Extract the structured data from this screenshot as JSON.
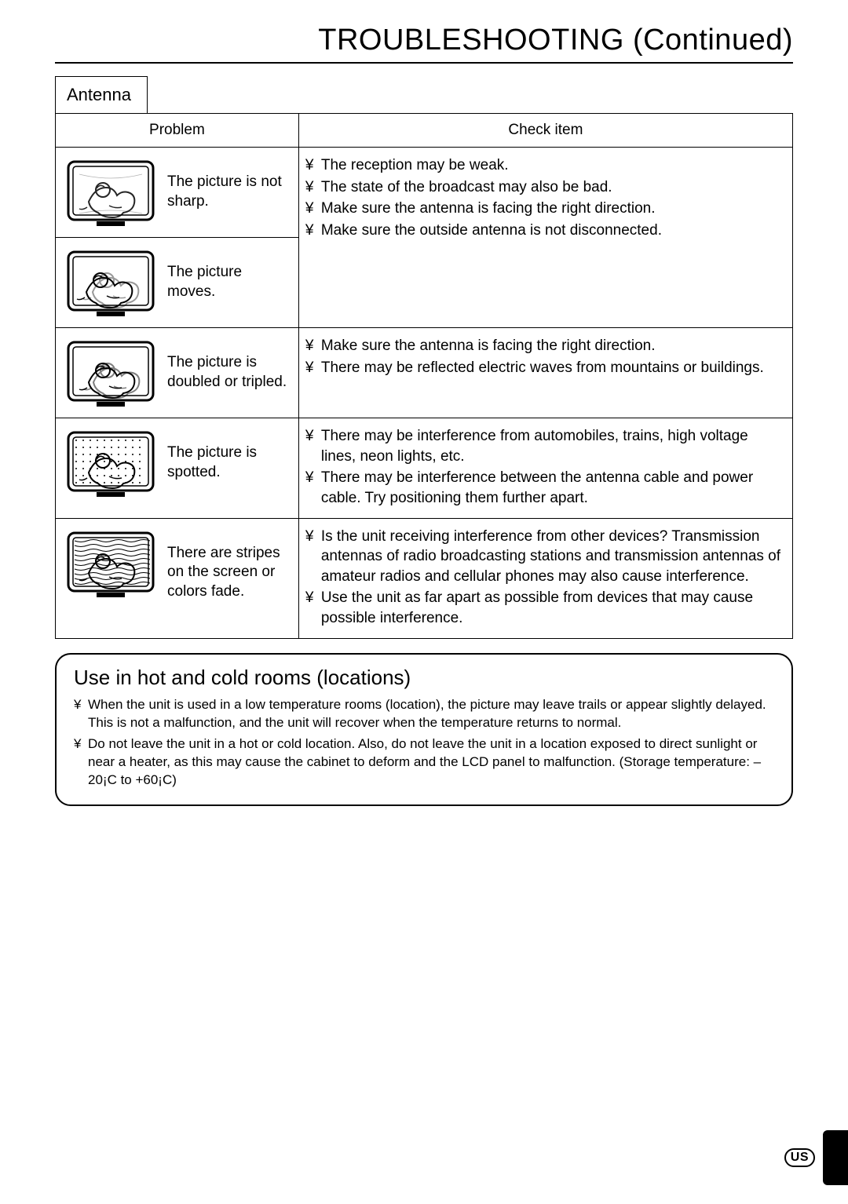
{
  "page": {
    "title": "TROUBLESHOOTING (Continued)",
    "section_tab": "Antenna",
    "columns": {
      "problem": "Problem",
      "check": "Check item"
    },
    "bullet_glyph": "¥",
    "rows": [
      {
        "problem": "The picture is not sharp.",
        "tv_variant": "blurry",
        "checks": [
          "The reception may be weak.",
          "The state of the broadcast may also be bad.",
          "Make sure the antenna is facing the right direction.",
          "Make sure the outside antenna is not disconnected."
        ]
      },
      {
        "problem": "The picture moves.",
        "tv_variant": "moves",
        "checks": []
      },
      {
        "problem": "The picture is doubled or tripled.",
        "tv_variant": "ghost",
        "checks": [
          "Make sure the antenna is facing the right direction.",
          "There may be reflected electric waves from mountains or buildings."
        ]
      },
      {
        "problem": "The picture is spotted.",
        "tv_variant": "spotted",
        "checks": [
          "There may be interference from automobiles, trains, high voltage lines, neon lights, etc.",
          "There may be interference between the antenna cable and power cable. Try positioning them further apart."
        ]
      },
      {
        "problem": "There are stripes on the screen or colors fade.",
        "tv_variant": "stripes",
        "checks": [
          "Is the unit receiving interference from other devices? Transmission antennas of radio broadcasting stations and transmission antennas of amateur radios and cellular phones may also cause interference.",
          "Use the unit as far apart as possible from devices that may cause possible interference."
        ]
      }
    ],
    "note": {
      "title": "Use in hot and cold rooms (locations)",
      "items": [
        "When the unit is used in a low temperature rooms (location), the picture may leave trails or appear slightly delayed. This is not a malfunction, and the unit will recover when the temperature returns to normal.",
        "Do not leave the unit in a hot or cold location. Also, do not leave the unit in a location exposed to direct sunlight or near a heater, as this may cause the cabinet to deform and the LCD panel to malfunction. (Storage temperature: –20¡C to +60¡C)"
      ]
    },
    "footer_badge": "US"
  },
  "style": {
    "colors": {
      "text": "#000000",
      "bg": "#ffffff",
      "border": "#000000"
    },
    "title_fontsize": 38,
    "body_fontsize": 19,
    "note_title_fontsize": 26,
    "note_body_fontsize": 17,
    "tv_icon": {
      "width": 116,
      "height": 90,
      "stroke": "#000000",
      "fill": "#ffffff"
    }
  }
}
